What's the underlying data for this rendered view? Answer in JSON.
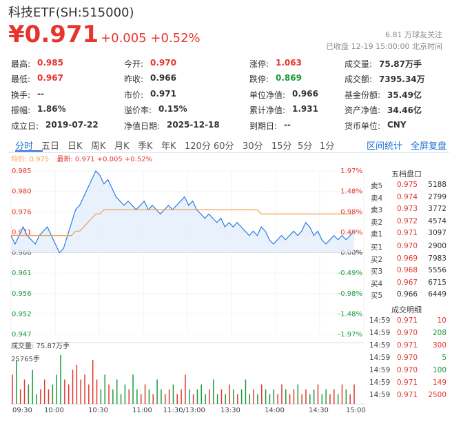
{
  "header": {
    "title": "科技ETF(SH:515000)",
    "price": "¥0.971",
    "change": "+0.005",
    "change_pct": "+0.52%",
    "followers": "6.81 万球友关注",
    "status": "已收盘 12-19 15:00:00 北京时间"
  },
  "quote_grid": [
    [
      {
        "label": "最高:",
        "value": "0.985",
        "color": "up"
      },
      {
        "label": "今开:",
        "value": "0.970",
        "color": "up"
      },
      {
        "label": "涨停:",
        "value": "1.063",
        "color": "up"
      },
      {
        "label": "成交量:",
        "value": "75.87万手",
        "color": ""
      }
    ],
    [
      {
        "label": "最低:",
        "value": "0.967",
        "color": "up"
      },
      {
        "label": "昨收:",
        "value": "0.966",
        "color": ""
      },
      {
        "label": "跌停:",
        "value": "0.869",
        "color": "down"
      },
      {
        "label": "成交额:",
        "value": "7395.34万",
        "color": ""
      }
    ],
    [
      {
        "label": "换手:",
        "value": "--",
        "color": ""
      },
      {
        "label": "市价:",
        "value": "0.971",
        "color": ""
      },
      {
        "label": "单位净值:",
        "value": "0.966",
        "color": ""
      },
      {
        "label": "基金份额:",
        "value": "35.49亿",
        "color": ""
      }
    ],
    [
      {
        "label": "振幅:",
        "value": "1.86%",
        "color": ""
      },
      {
        "label": "溢价率:",
        "value": "0.15%",
        "color": ""
      },
      {
        "label": "累计净值:",
        "value": "1.931",
        "color": ""
      },
      {
        "label": "资产净值:",
        "value": "34.46亿",
        "color": ""
      }
    ],
    [
      {
        "label": "成立日:",
        "value": "2019-07-22",
        "color": ""
      },
      {
        "label": "净值日期:",
        "value": "2025-12-18",
        "color": ""
      },
      {
        "label": "到期日:",
        "value": "--",
        "color": ""
      },
      {
        "label": "货币单位:",
        "value": "CNY",
        "color": ""
      }
    ]
  ],
  "tabs": [
    "分时",
    "五日",
    "日K",
    "周K",
    "月K",
    "季K",
    "年K",
    "120分",
    "60分",
    "30分",
    "15分",
    "5分",
    "1分"
  ],
  "active_tab": "分时",
  "right_links": [
    "区间统计",
    "全屏复盘"
  ],
  "avg_label": "均价: 0.975",
  "latest_label": "最新: 0.971 +0.005 +0.52%",
  "volume_label": "成交量: 75.87万手",
  "volume_max_label": "25765手",
  "colors": {
    "up": "#e5352d",
    "down": "#1a9b3b",
    "price_line": "#2c7be5",
    "avg_line": "#f0a04b",
    "accent": "#1f6fd1"
  },
  "chart_data": {
    "type": "line",
    "title": "",
    "xlabel": "",
    "ylabel": "",
    "prev_close": 0.966,
    "ylim": [
      0.947,
      0.985
    ],
    "y_ticks": [
      "0.985",
      "0.980",
      "0.976",
      "0.971",
      "0.966",
      "0.961",
      "0.956",
      "0.952",
      "0.947"
    ],
    "pct_ticks": [
      "1.97%",
      "1.48%",
      "0.98%",
      "0.49%",
      "0.00%",
      "-0.49%",
      "-0.98%",
      "-1.48%",
      "-1.97%"
    ],
    "x_ticks": [
      "09:30",
      "10:00",
      "10:30",
      "11:00",
      "11:30/13:00",
      "13:30",
      "14:00",
      "14:30",
      "15:00"
    ],
    "price_series": [
      0.97,
      0.968,
      0.97,
      0.972,
      0.97,
      0.969,
      0.968,
      0.97,
      0.971,
      0.972,
      0.97,
      0.968,
      0.966,
      0.967,
      0.97,
      0.973,
      0.976,
      0.977,
      0.979,
      0.981,
      0.983,
      0.985,
      0.984,
      0.982,
      0.983,
      0.981,
      0.979,
      0.978,
      0.977,
      0.978,
      0.977,
      0.976,
      0.977,
      0.978,
      0.976,
      0.977,
      0.976,
      0.975,
      0.976,
      0.977,
      0.976,
      0.977,
      0.978,
      0.979,
      0.977,
      0.978,
      0.976,
      0.975,
      0.974,
      0.975,
      0.974,
      0.973,
      0.974,
      0.972,
      0.973,
      0.972,
      0.973,
      0.972,
      0.971,
      0.97,
      0.971,
      0.97,
      0.972,
      0.971,
      0.969,
      0.968,
      0.969,
      0.97,
      0.969,
      0.97,
      0.971,
      0.97,
      0.971,
      0.973,
      0.972,
      0.97,
      0.971,
      0.969,
      0.968,
      0.969,
      0.97,
      0.969,
      0.97,
      0.969,
      0.97,
      0.971
    ],
    "avg_series": [
      0.97,
      0.97,
      0.97,
      0.97,
      0.97,
      0.97,
      0.97,
      0.97,
      0.97,
      0.97,
      0.97,
      0.97,
      0.97,
      0.97,
      0.97,
      0.97,
      0.971,
      0.971,
      0.972,
      0.973,
      0.974,
      0.975,
      0.975,
      0.976,
      0.976,
      0.976,
      0.976,
      0.976,
      0.976,
      0.976,
      0.976,
      0.976,
      0.976,
      0.976,
      0.976,
      0.976,
      0.976,
      0.976,
      0.976,
      0.976,
      0.976,
      0.976,
      0.976,
      0.976,
      0.976,
      0.976,
      0.976,
      0.976,
      0.976,
      0.976,
      0.976,
      0.976,
      0.976,
      0.976,
      0.976,
      0.976,
      0.976,
      0.976,
      0.976,
      0.976,
      0.976,
      0.976,
      0.975,
      0.975,
      0.975,
      0.975,
      0.975,
      0.975,
      0.975,
      0.975,
      0.975,
      0.975,
      0.975,
      0.975,
      0.975,
      0.975,
      0.975,
      0.975,
      0.975,
      0.975,
      0.975,
      0.975,
      0.975,
      0.975,
      0.975,
      0.975
    ],
    "volume_series": [
      0.6,
      0.9,
      0.3,
      0.5,
      0.4,
      0.7,
      0.2,
      0.3,
      0.5,
      0.3,
      0.4,
      0.6,
      1.0,
      0.5,
      0.4,
      0.7,
      0.8,
      0.5,
      0.6,
      0.4,
      0.9,
      0.5,
      0.3,
      0.6,
      0.4,
      0.3,
      0.5,
      0.2,
      0.4,
      0.3,
      0.6,
      0.3,
      0.2,
      0.4,
      0.3,
      0.2,
      0.5,
      0.3,
      0.2,
      0.3,
      0.4,
      0.2,
      0.3,
      0.6,
      0.3,
      0.2,
      0.3,
      0.4,
      0.2,
      0.3,
      0.5,
      0.2,
      0.3,
      0.2,
      0.4,
      0.3,
      0.2,
      0.3,
      0.5,
      0.2,
      0.3,
      0.2,
      0.4,
      0.3,
      0.2,
      0.3,
      0.2,
      0.4,
      0.3,
      0.2,
      0.3,
      0.4,
      0.2,
      0.3,
      0.2,
      0.3,
      0.4,
      0.2,
      0.3,
      0.2,
      0.3,
      0.2,
      0.4,
      0.3,
      0.2,
      0.4
    ]
  },
  "order_book": {
    "title": "五档盘口",
    "asks": [
      {
        "label": "卖5",
        "price": "0.975",
        "vol": "5188"
      },
      {
        "label": "卖4",
        "price": "0.974",
        "vol": "2799"
      },
      {
        "label": "卖3",
        "price": "0.973",
        "vol": "3772"
      },
      {
        "label": "卖2",
        "price": "0.972",
        "vol": "4574"
      },
      {
        "label": "卖1",
        "price": "0.971",
        "vol": "3097"
      }
    ],
    "bids": [
      {
        "label": "买1",
        "price": "0.970",
        "vol": "2900"
      },
      {
        "label": "买2",
        "price": "0.969",
        "vol": "7983"
      },
      {
        "label": "买3",
        "price": "0.968",
        "vol": "5556"
      },
      {
        "label": "买4",
        "price": "0.967",
        "vol": "6715"
      },
      {
        "label": "买5",
        "price": "0.966",
        "vol": "6449"
      }
    ]
  },
  "trades": {
    "title": "成交明细",
    "rows": [
      {
        "time": "14:59",
        "price": "0.971",
        "vol": "10",
        "color": "up"
      },
      {
        "time": "14:59",
        "price": "0.970",
        "vol": "208",
        "color": "down"
      },
      {
        "time": "14:59",
        "price": "0.971",
        "vol": "300",
        "color": "up"
      },
      {
        "time": "14:59",
        "price": "0.970",
        "vol": "5",
        "color": "down"
      },
      {
        "time": "14:59",
        "price": "0.970",
        "vol": "100",
        "color": "down"
      },
      {
        "time": "14:59",
        "price": "0.971",
        "vol": "149",
        "color": "up"
      },
      {
        "time": "14:59",
        "price": "0.971",
        "vol": "2500",
        "color": "up"
      }
    ]
  }
}
